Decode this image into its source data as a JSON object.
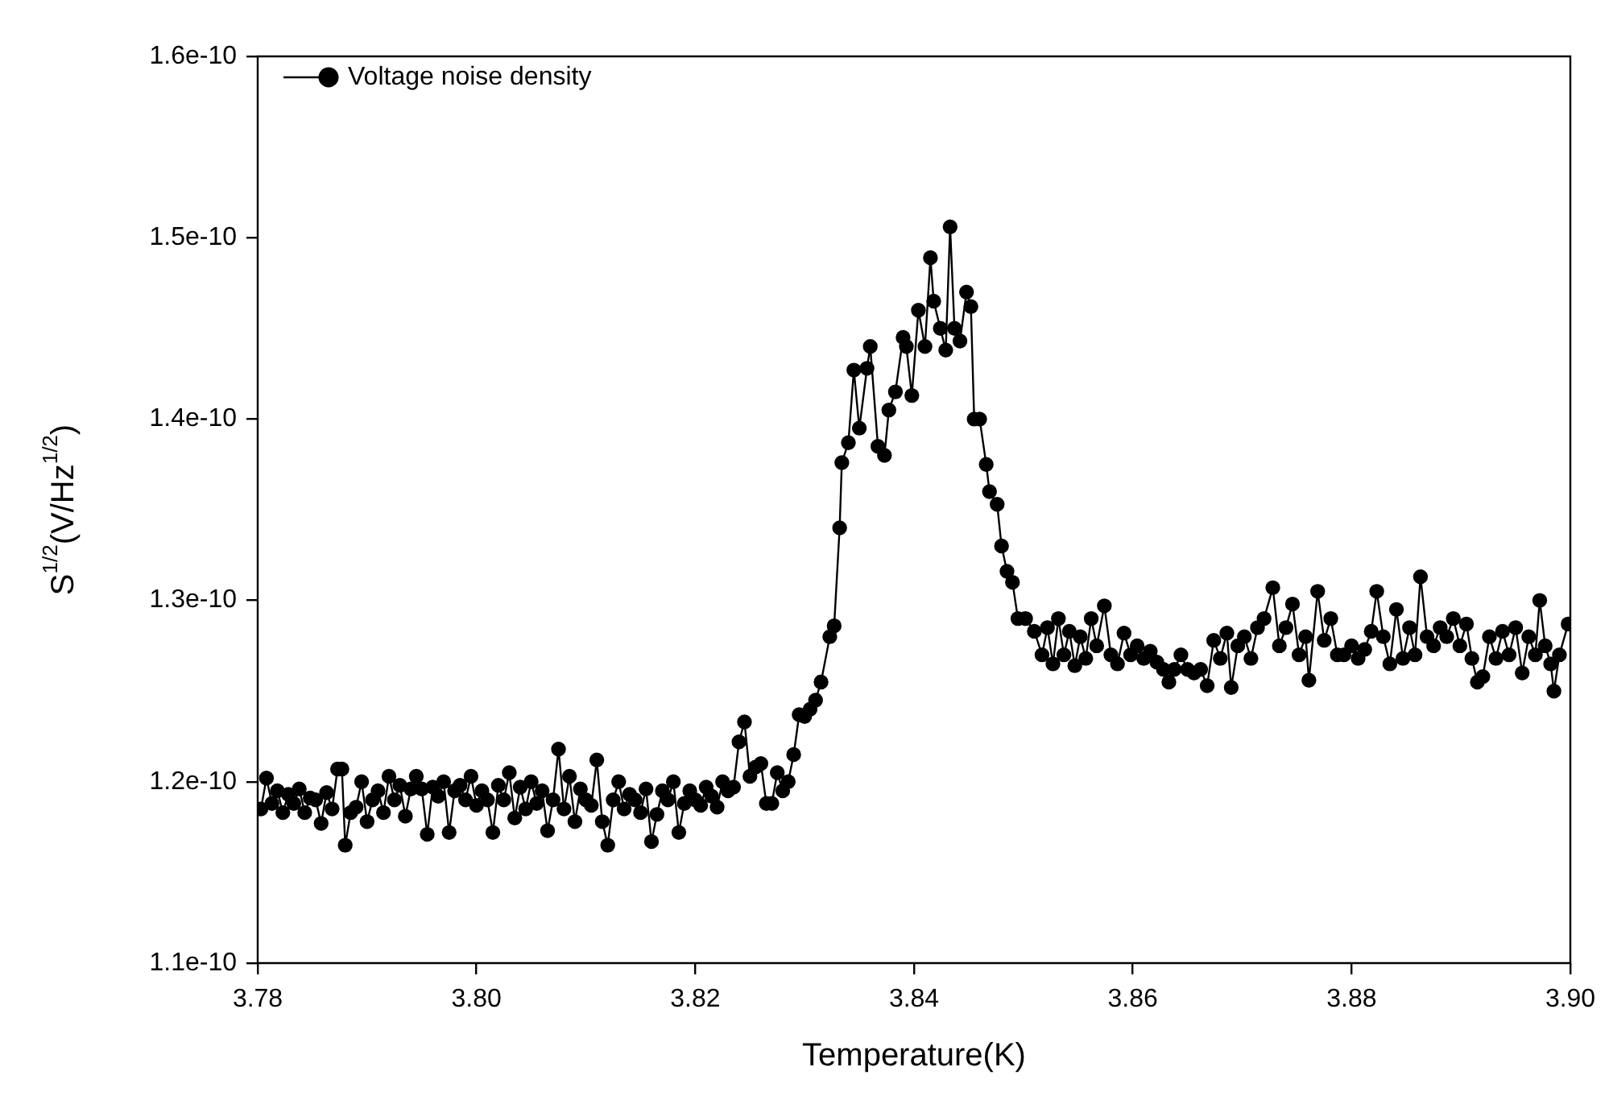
{
  "chart_data": {
    "type": "line",
    "xlabel": "Temperature(K)",
    "ylabel": "S$^{1/2}$(V/Hz$^{1/2}$)",
    "xlim": [
      3.78,
      3.9
    ],
    "xticks": [
      {
        "value": 3.78,
        "label": "3.78"
      },
      {
        "value": 3.8,
        "label": "3.80"
      },
      {
        "value": 3.82,
        "label": "3.82"
      },
      {
        "value": 3.84,
        "label": "3.84"
      },
      {
        "value": 3.86,
        "label": "3.86"
      },
      {
        "value": 3.88,
        "label": "3.88"
      },
      {
        "value": 3.9,
        "label": "3.90"
      }
    ],
    "ylim": [
      1.1e-10,
      1.6e-10
    ],
    "yticks": [
      1.1e-10,
      1.2e-10,
      1.3e-10,
      1.4e-10,
      1.5e-10,
      1.6e-10
    ],
    "legend": "top left",
    "marker": "circle",
    "line_style": "solid",
    "grid": false,
    "series": [
      {
        "name": "Voltage noise density",
        "color": "#000000",
        "x": [
          3.7803,
          3.7808,
          3.7813,
          3.7818,
          3.7823,
          3.7828,
          3.7833,
          3.7838,
          3.7843,
          3.7848,
          3.7853,
          3.7858,
          3.7863,
          3.7868,
          3.7873,
          3.7877,
          3.788,
          3.7885,
          3.789,
          3.7895,
          3.79,
          3.7905,
          3.791,
          3.7915,
          3.792,
          3.7925,
          3.793,
          3.7935,
          3.794,
          3.7945,
          3.795,
          3.7955,
          3.796,
          3.7965,
          3.797,
          3.7975,
          3.798,
          3.7985,
          3.799,
          3.7995,
          3.8,
          3.8005,
          3.801,
          3.8015,
          3.802,
          3.8025,
          3.803,
          3.8035,
          3.804,
          3.8045,
          3.805,
          3.8055,
          3.806,
          3.8065,
          3.807,
          3.8075,
          3.808,
          3.8085,
          3.809,
          3.8095,
          3.81,
          3.8105,
          3.811,
          3.8115,
          3.812,
          3.8125,
          3.813,
          3.8135,
          3.814,
          3.8145,
          3.815,
          3.8155,
          3.816,
          3.8165,
          3.817,
          3.8175,
          3.818,
          3.8185,
          3.819,
          3.8195,
          3.82,
          3.8205,
          3.821,
          3.8215,
          3.822,
          3.8225,
          3.823,
          3.8235,
          3.824,
          3.8245,
          3.825,
          3.8255,
          3.826,
          3.8265,
          3.827,
          3.8275,
          3.828,
          3.8285,
          3.829,
          3.8295,
          3.83,
          3.8305,
          3.831,
          3.8315,
          3.8323,
          3.8327,
          3.8332,
          3.8334,
          3.834,
          3.8345,
          3.835,
          3.8357,
          3.836,
          3.8367,
          3.8373,
          3.8377,
          3.8383,
          3.839,
          3.8393,
          3.8398,
          3.8404,
          3.841,
          3.8415,
          3.8418,
          3.8424,
          3.8429,
          3.8433,
          3.8437,
          3.8442,
          3.8448,
          3.8452,
          3.8455,
          3.846,
          3.8466,
          3.8469,
          3.8476,
          3.848,
          3.8485,
          3.849,
          3.8495,
          3.8502,
          3.851,
          3.8517,
          3.8522,
          3.8527,
          3.8532,
          3.8537,
          3.8542,
          3.8547,
          3.8552,
          3.8557,
          3.8562,
          3.8567,
          3.8574,
          3.858,
          3.8586,
          3.8592,
          3.8598,
          3.8604,
          3.861,
          3.8616,
          3.8622,
          3.8628,
          3.8633,
          3.8638,
          3.8644,
          3.865,
          3.8656,
          3.8662,
          3.8668,
          3.8674,
          3.868,
          3.8686,
          3.869,
          3.8696,
          3.8702,
          3.8708,
          3.8714,
          3.872,
          3.8728,
          3.8734,
          3.874,
          3.8746,
          3.8752,
          3.8758,
          3.8761,
          3.8769,
          3.8775,
          3.8781,
          3.8787,
          3.8793,
          3.88,
          3.8806,
          3.8812,
          3.8818,
          3.8823,
          3.8829,
          3.8835,
          3.8841,
          3.8847,
          3.8853,
          3.8858,
          3.8863,
          3.8869,
          3.8875,
          3.8881,
          3.8887,
          3.8893,
          3.8899,
          3.8905,
          3.891,
          3.8915,
          3.892,
          3.8926,
          3.8932,
          3.8938,
          3.8944,
          3.895,
          3.8956,
          3.8962,
          3.8968,
          3.8972,
          3.8977,
          3.8982,
          3.8985,
          3.899,
          3.8998
        ],
        "values": [
          1.185e-10,
          1.202e-10,
          1.188e-10,
          1.195e-10,
          1.183e-10,
          1.193e-10,
          1.188e-10,
          1.196e-10,
          1.183e-10,
          1.191e-10,
          1.19e-10,
          1.177e-10,
          1.194e-10,
          1.185e-10,
          1.207e-10,
          1.207e-10,
          1.165e-10,
          1.183e-10,
          1.186e-10,
          1.2e-10,
          1.178e-10,
          1.19e-10,
          1.195e-10,
          1.183e-10,
          1.203e-10,
          1.19e-10,
          1.198e-10,
          1.181e-10,
          1.196e-10,
          1.203e-10,
          1.196e-10,
          1.171e-10,
          1.197e-10,
          1.192e-10,
          1.2e-10,
          1.172e-10,
          1.195e-10,
          1.198e-10,
          1.19e-10,
          1.203e-10,
          1.187e-10,
          1.195e-10,
          1.19e-10,
          1.172e-10,
          1.198e-10,
          1.19e-10,
          1.205e-10,
          1.18e-10,
          1.197e-10,
          1.185e-10,
          1.2e-10,
          1.188e-10,
          1.195e-10,
          1.173e-10,
          1.19e-10,
          1.218e-10,
          1.185e-10,
          1.203e-10,
          1.178e-10,
          1.196e-10,
          1.19e-10,
          1.187e-10,
          1.212e-10,
          1.178e-10,
          1.165e-10,
          1.19e-10,
          1.2e-10,
          1.185e-10,
          1.193e-10,
          1.19e-10,
          1.183e-10,
          1.196e-10,
          1.167e-10,
          1.182e-10,
          1.195e-10,
          1.19e-10,
          1.2e-10,
          1.172e-10,
          1.188e-10,
          1.195e-10,
          1.19e-10,
          1.187e-10,
          1.197e-10,
          1.192e-10,
          1.186e-10,
          1.2e-10,
          1.195e-10,
          1.197e-10,
          1.222e-10,
          1.233e-10,
          1.203e-10,
          1.208e-10,
          1.21e-10,
          1.188e-10,
          1.188e-10,
          1.205e-10,
          1.195e-10,
          1.2e-10,
          1.215e-10,
          1.237e-10,
          1.236e-10,
          1.24e-10,
          1.245e-10,
          1.255e-10,
          1.28e-10,
          1.286e-10,
          1.34e-10,
          1.376e-10,
          1.387e-10,
          1.427e-10,
          1.395e-10,
          1.428e-10,
          1.44e-10,
          1.385e-10,
          1.38e-10,
          1.405e-10,
          1.415e-10,
          1.445e-10,
          1.44e-10,
          1.413e-10,
          1.46e-10,
          1.44e-10,
          1.489e-10,
          1.465e-10,
          1.45e-10,
          1.438e-10,
          1.506e-10,
          1.45e-10,
          1.443e-10,
          1.47e-10,
          1.462e-10,
          1.4e-10,
          1.4e-10,
          1.375e-10,
          1.36e-10,
          1.353e-10,
          1.33e-10,
          1.316e-10,
          1.31e-10,
          1.29e-10,
          1.29e-10,
          1.283e-10,
          1.27e-10,
          1.285e-10,
          1.265e-10,
          1.29e-10,
          1.27e-10,
          1.283e-10,
          1.264e-10,
          1.28e-10,
          1.268e-10,
          1.29e-10,
          1.275e-10,
          1.297e-10,
          1.27e-10,
          1.265e-10,
          1.282e-10,
          1.27e-10,
          1.275e-10,
          1.268e-10,
          1.272e-10,
          1.266e-10,
          1.262e-10,
          1.255e-10,
          1.262e-10,
          1.27e-10,
          1.262e-10,
          1.26e-10,
          1.262e-10,
          1.253e-10,
          1.278e-10,
          1.268e-10,
          1.282e-10,
          1.252e-10,
          1.275e-10,
          1.28e-10,
          1.268e-10,
          1.285e-10,
          1.29e-10,
          1.307e-10,
          1.275e-10,
          1.285e-10,
          1.298e-10,
          1.27e-10,
          1.28e-10,
          1.256e-10,
          1.305e-10,
          1.278e-10,
          1.29e-10,
          1.27e-10,
          1.27e-10,
          1.275e-10,
          1.268e-10,
          1.273e-10,
          1.283e-10,
          1.305e-10,
          1.28e-10,
          1.265e-10,
          1.295e-10,
          1.268e-10,
          1.285e-10,
          1.27e-10,
          1.313e-10,
          1.28e-10,
          1.275e-10,
          1.285e-10,
          1.28e-10,
          1.29e-10,
          1.275e-10,
          1.287e-10,
          1.268e-10,
          1.255e-10,
          1.258e-10,
          1.28e-10,
          1.268e-10,
          1.283e-10,
          1.27e-10,
          1.285e-10,
          1.26e-10,
          1.28e-10,
          1.27e-10,
          1.3e-10,
          1.275e-10,
          1.265e-10,
          1.25e-10,
          1.27e-10,
          1.287e-10
        ]
      }
    ]
  }
}
